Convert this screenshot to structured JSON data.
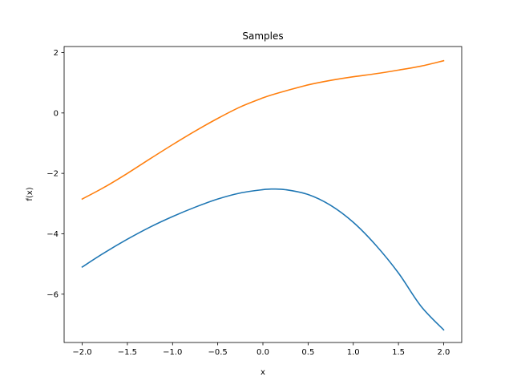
{
  "chart_data": {
    "type": "line",
    "title": "Samples",
    "xlabel": "x",
    "ylabel": "f(x)",
    "xlim": [
      -2.2,
      2.2
    ],
    "ylim": [
      -7.6,
      2.2
    ],
    "xticks": [
      -2.0,
      -1.5,
      -1.0,
      -0.5,
      0.0,
      0.5,
      1.0,
      1.5,
      2.0
    ],
    "xtick_labels": [
      "−2.0",
      "−1.5",
      "−1.0",
      "−0.5",
      "0.0",
      "0.5",
      "1.0",
      "1.5",
      "2.0"
    ],
    "yticks": [
      -6,
      -4,
      -2,
      0,
      2
    ],
    "ytick_labels": [
      "−6",
      "−4",
      "−2",
      "0",
      "2"
    ],
    "grid": false,
    "x": [
      -2.0,
      -1.75,
      -1.5,
      -1.25,
      -1.0,
      -0.75,
      -0.5,
      -0.25,
      0.0,
      0.1,
      0.25,
      0.5,
      0.75,
      1.0,
      1.25,
      1.5,
      1.75,
      2.0
    ],
    "series": [
      {
        "color": "#1f77b4",
        "values": [
          -5.1,
          -4.62,
          -4.18,
          -3.78,
          -3.43,
          -3.12,
          -2.85,
          -2.65,
          -2.54,
          -2.52,
          -2.54,
          -2.7,
          -3.06,
          -3.62,
          -4.38,
          -5.3,
          -6.4,
          -7.18
        ]
      },
      {
        "color": "#ff7f0e",
        "values": [
          -2.85,
          -2.45,
          -2.0,
          -1.52,
          -1.05,
          -0.6,
          -0.18,
          0.2,
          0.5,
          0.6,
          0.73,
          0.93,
          1.08,
          1.2,
          1.3,
          1.42,
          1.55,
          1.73
        ]
      }
    ]
  }
}
